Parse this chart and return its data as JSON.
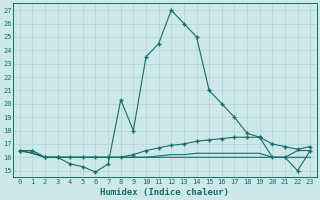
{
  "title": "",
  "xlabel": "Humidex (Indice chaleur)",
  "xlim": [
    -0.5,
    23.5
  ],
  "ylim": [
    14.5,
    27.5
  ],
  "yticks": [
    15,
    16,
    17,
    18,
    19,
    20,
    21,
    22,
    23,
    24,
    25,
    26,
    27
  ],
  "xticks": [
    0,
    1,
    2,
    3,
    4,
    5,
    6,
    7,
    8,
    9,
    10,
    11,
    12,
    13,
    14,
    15,
    16,
    17,
    18,
    19,
    20,
    21,
    22,
    23
  ],
  "line_color": "#1a6b6b",
  "bg_color": "#cce8e8",
  "grid_color": "#b0d4d4",
  "line1_y": [
    16.5,
    16.5,
    16.0,
    16.0,
    15.5,
    15.3,
    14.9,
    15.5,
    20.3,
    18.0,
    23.5,
    24.5,
    27.0,
    26.0,
    25.0,
    21.0,
    20.0,
    19.0,
    17.8,
    17.5,
    16.0,
    16.0,
    15.0,
    16.5
  ],
  "line2_y": [
    16.5,
    16.5,
    16.0,
    16.0,
    16.0,
    16.0,
    16.0,
    16.0,
    16.0,
    16.2,
    16.5,
    16.7,
    16.9,
    17.0,
    17.2,
    17.3,
    17.4,
    17.5,
    17.5,
    17.5,
    17.0,
    16.8,
    16.6,
    16.8
  ],
  "line3_y": [
    16.5,
    16.3,
    16.0,
    16.0,
    16.0,
    16.0,
    16.0,
    16.0,
    16.0,
    16.0,
    16.0,
    16.1,
    16.2,
    16.2,
    16.3,
    16.3,
    16.3,
    16.3,
    16.3,
    16.3,
    16.0,
    16.0,
    16.5,
    16.5
  ],
  "line4_y": [
    16.5,
    16.3,
    16.0,
    16.0,
    16.0,
    16.0,
    16.0,
    16.0,
    16.0,
    16.0,
    16.0,
    16.0,
    16.0,
    16.0,
    16.0,
    16.0,
    16.0,
    16.0,
    16.0,
    16.0,
    16.0,
    16.0,
    16.0,
    16.0
  ]
}
